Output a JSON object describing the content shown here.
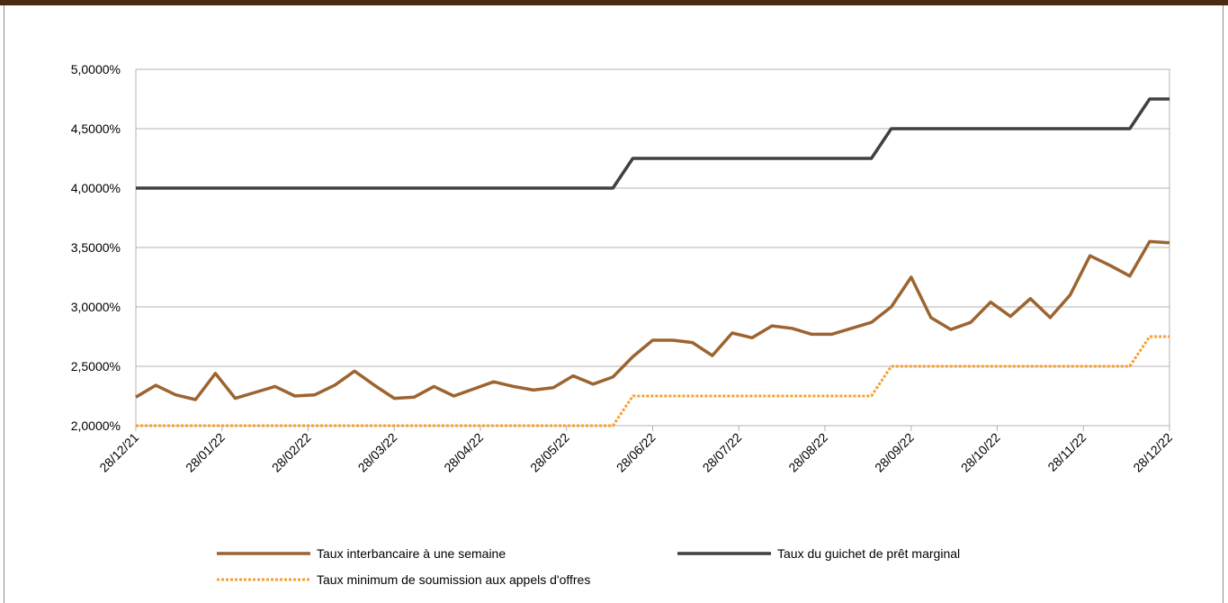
{
  "chart_data": {
    "type": "line",
    "title": "",
    "xlabel": "",
    "ylabel": "",
    "ylim": [
      2.0,
      5.0
    ],
    "y_ticks": [
      "2,0000%",
      "2,5000%",
      "3,0000%",
      "3,5000%",
      "4,0000%",
      "4,5000%",
      "5,0000%"
    ],
    "x_ticks": [
      "28/12/21",
      "28/01/22",
      "28/02/22",
      "28/03/22",
      "28/04/22",
      "28/05/22",
      "28/06/22",
      "28/07/22",
      "28/08/22",
      "28/09/22",
      "28/10/22",
      "28/11/22",
      "28/12/22"
    ],
    "legend_position": "bottom",
    "grid": true,
    "series": [
      {
        "name": "Taux interbancaire à une semaine",
        "color": "#9c6430",
        "style": "solid",
        "values": [
          2.24,
          2.34,
          2.26,
          2.22,
          2.44,
          2.23,
          2.28,
          2.33,
          2.25,
          2.26,
          2.34,
          2.46,
          2.34,
          2.23,
          2.24,
          2.33,
          2.25,
          2.31,
          2.37,
          2.33,
          2.3,
          2.32,
          2.42,
          2.35,
          2.41,
          2.58,
          2.72,
          2.72,
          2.7,
          2.59,
          2.78,
          2.74,
          2.84,
          2.82,
          2.77,
          2.77,
          2.82,
          2.87,
          3.0,
          3.25,
          2.91,
          2.81,
          2.87,
          3.04,
          2.92,
          3.07,
          2.91,
          3.1,
          3.43,
          3.35,
          3.26,
          3.55,
          3.54
        ]
      },
      {
        "name": "Taux du guichet de prêt marginal",
        "color": "#404040",
        "style": "solid",
        "values": [
          4.0,
          4.0,
          4.0,
          4.0,
          4.0,
          4.0,
          4.0,
          4.0,
          4.0,
          4.0,
          4.0,
          4.0,
          4.0,
          4.0,
          4.0,
          4.0,
          4.0,
          4.0,
          4.0,
          4.0,
          4.0,
          4.0,
          4.0,
          4.0,
          4.0,
          4.25,
          4.25,
          4.25,
          4.25,
          4.25,
          4.25,
          4.25,
          4.25,
          4.25,
          4.25,
          4.25,
          4.25,
          4.25,
          4.5,
          4.5,
          4.5,
          4.5,
          4.5,
          4.5,
          4.5,
          4.5,
          4.5,
          4.5,
          4.5,
          4.5,
          4.5,
          4.75,
          4.75
        ]
      },
      {
        "name": "Taux minimum de soumission aux appels d'offres",
        "color": "#f5a030",
        "style": "dotted",
        "values": [
          2.0,
          2.0,
          2.0,
          2.0,
          2.0,
          2.0,
          2.0,
          2.0,
          2.0,
          2.0,
          2.0,
          2.0,
          2.0,
          2.0,
          2.0,
          2.0,
          2.0,
          2.0,
          2.0,
          2.0,
          2.0,
          2.0,
          2.0,
          2.0,
          2.0,
          2.25,
          2.25,
          2.25,
          2.25,
          2.25,
          2.25,
          2.25,
          2.25,
          2.25,
          2.25,
          2.25,
          2.25,
          2.25,
          2.5,
          2.5,
          2.5,
          2.5,
          2.5,
          2.5,
          2.5,
          2.5,
          2.5,
          2.5,
          2.5,
          2.5,
          2.5,
          2.75,
          2.75
        ]
      }
    ]
  }
}
